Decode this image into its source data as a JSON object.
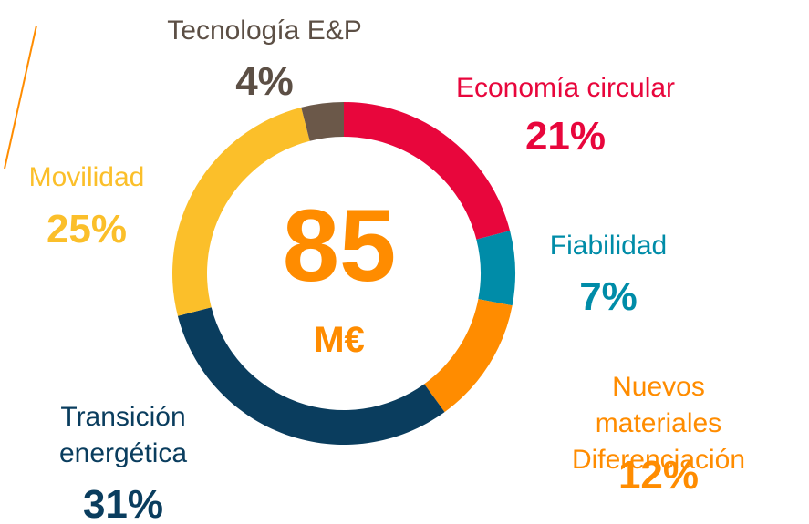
{
  "chart_data": {
    "type": "donut",
    "categories": [
      "Economía circular",
      "Fiabilidad",
      "Nuevos materiales\nDiferenciación",
      "Transición\nenergética",
      "Movilidad",
      "Tecnología E&P"
    ],
    "values": [
      21,
      7,
      12,
      31,
      25,
      4
    ],
    "value_labels": [
      "21%",
      "7%",
      "12%",
      "31%",
      "25%",
      "4%"
    ],
    "colors": [
      "#e8063c",
      "#008ca8",
      "#ff8c00",
      "#0a3d5e",
      "#fbbf2a",
      "#6b5849"
    ],
    "center_value": 85,
    "center_unit": "M€"
  }
}
